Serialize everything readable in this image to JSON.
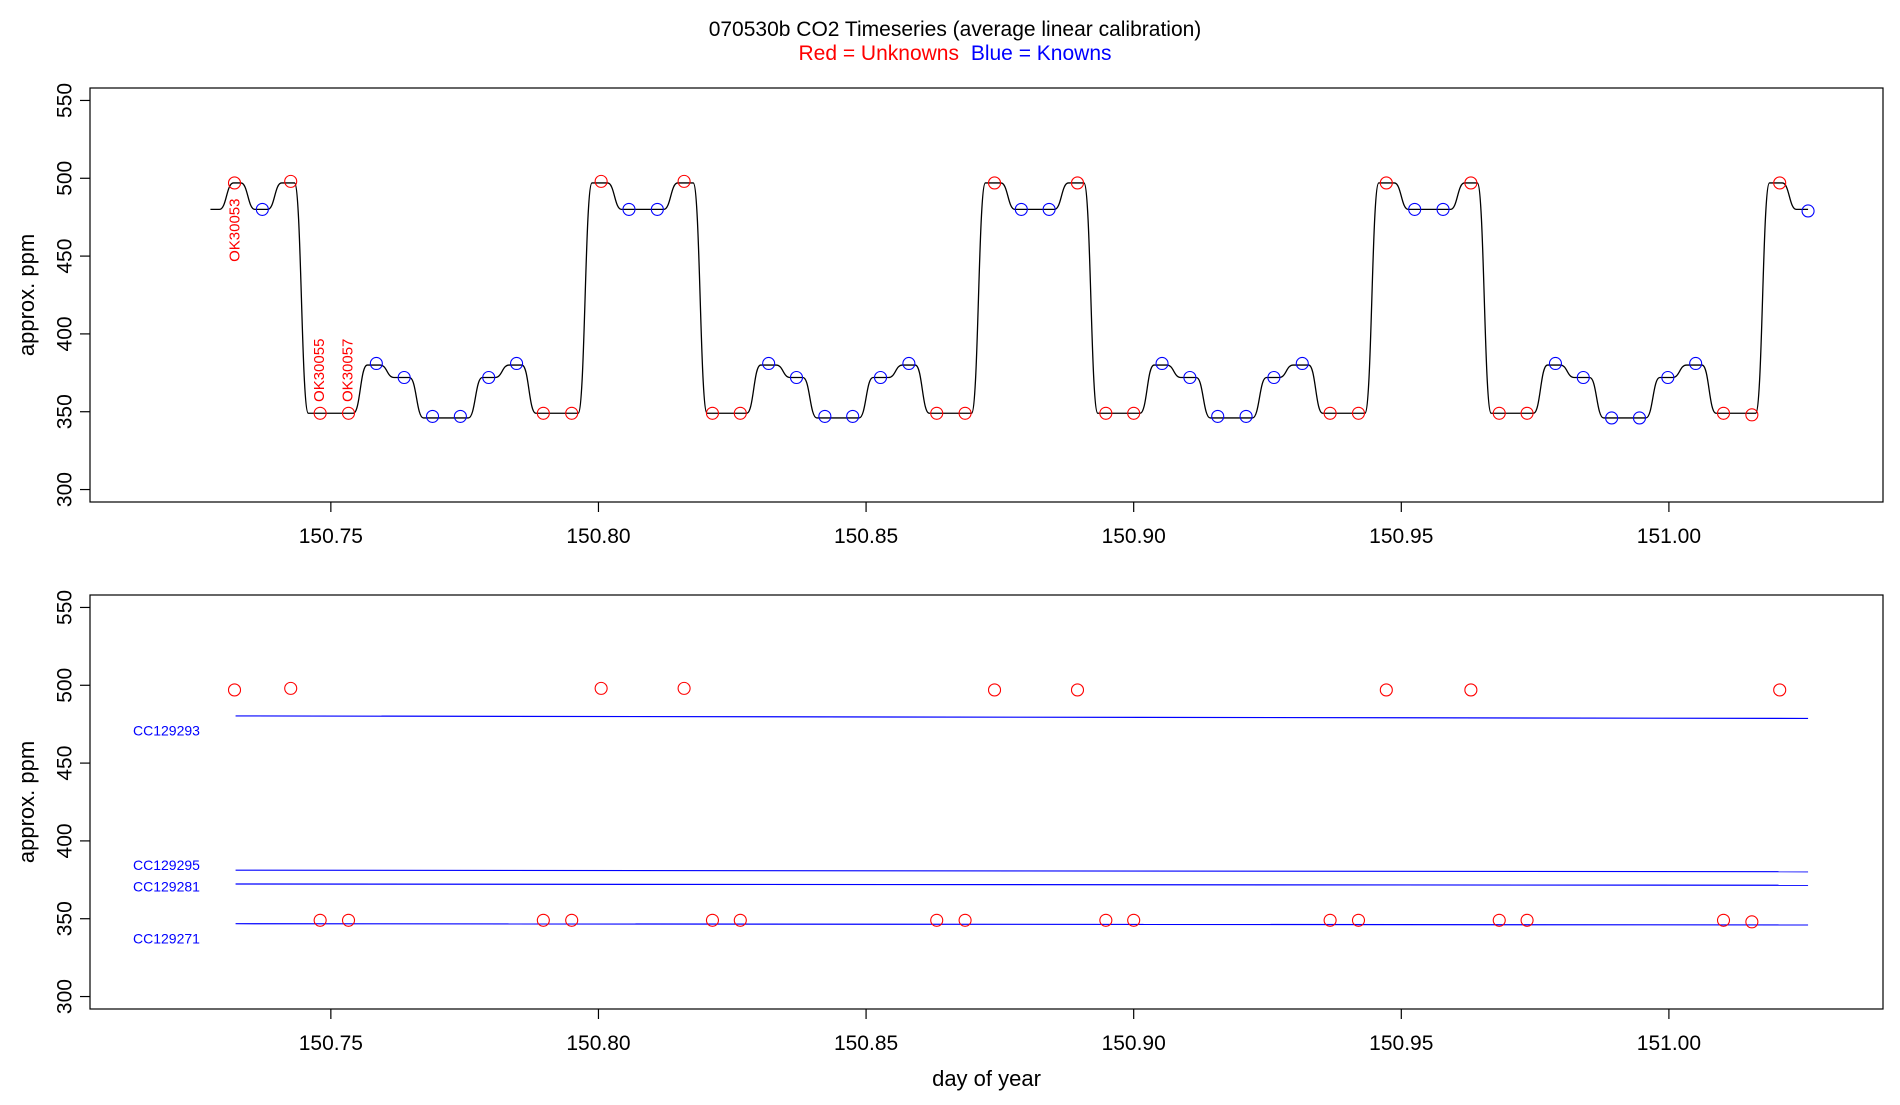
{
  "title": {
    "main": "070530b   CO2 Timeseries (average linear calibration)",
    "legend_red": "Red = Unknowns",
    "legend_blue": "Blue = Knowns"
  },
  "colors": {
    "unknown": "#ff0000",
    "known": "#0000ff",
    "trace": "#000000",
    "axis": "#000000"
  },
  "chart_data": [
    {
      "type": "line",
      "panel": "top",
      "ylabel": "approx. ppm",
      "xlabel": "",
      "xlim": [
        150.705,
        151.04
      ],
      "ylim": [
        292,
        558
      ],
      "x_ticks": [
        "150.75",
        "150.80",
        "150.85",
        "150.90",
        "150.95",
        "151.00"
      ],
      "y_ticks": [
        "300",
        "350",
        "400",
        "450",
        "500",
        "550"
      ],
      "trace_levels": [
        {
          "x0": 150.7275,
          "x1": 150.7305,
          "y": 480
        },
        {
          "x0": 150.7305,
          "x1": 150.7345,
          "y": 497
        },
        {
          "x0": 150.7345,
          "x1": 150.7395,
          "y": 480
        },
        {
          "x0": 150.7395,
          "x1": 150.7445,
          "y": 497
        },
        {
          "x0": 150.7445,
          "x1": 150.7555,
          "y": 349
        },
        {
          "x0": 150.7555,
          "x1": 150.7605,
          "y": 380
        },
        {
          "x0": 150.7605,
          "x1": 150.766,
          "y": 372
        },
        {
          "x0": 150.766,
          "x1": 150.777,
          "y": 346
        },
        {
          "x0": 150.777,
          "x1": 150.782,
          "y": 372
        },
        {
          "x0": 150.782,
          "x1": 150.787,
          "y": 380
        },
        {
          "x0": 150.787,
          "x1": 150.7975,
          "y": 349
        },
        {
          "x0": 150.7975,
          "x1": 150.803,
          "y": 497
        },
        {
          "x0": 150.803,
          "x1": 150.8135,
          "y": 480
        },
        {
          "x0": 150.8135,
          "x1": 150.819,
          "y": 497
        },
        {
          "x0": 150.819,
          "x1": 150.829,
          "y": 349
        },
        {
          "x0": 150.829,
          "x1": 150.8345,
          "y": 380
        },
        {
          "x0": 150.8345,
          "x1": 150.8395,
          "y": 372
        },
        {
          "x0": 150.8395,
          "x1": 150.85,
          "y": 346
        },
        {
          "x0": 150.85,
          "x1": 150.8555,
          "y": 372
        },
        {
          "x0": 150.8555,
          "x1": 150.8605,
          "y": 380
        },
        {
          "x0": 150.8605,
          "x1": 150.871,
          "y": 349
        },
        {
          "x0": 150.871,
          "x1": 150.8765,
          "y": 497
        },
        {
          "x0": 150.8765,
          "x1": 150.8865,
          "y": 480
        },
        {
          "x0": 150.8865,
          "x1": 150.892,
          "y": 497
        },
        {
          "x0": 150.892,
          "x1": 150.9025,
          "y": 349
        },
        {
          "x0": 150.9025,
          "x1": 150.9075,
          "y": 380
        },
        {
          "x0": 150.9075,
          "x1": 150.913,
          "y": 372
        },
        {
          "x0": 150.913,
          "x1": 150.9235,
          "y": 346
        },
        {
          "x0": 150.9235,
          "x1": 150.9285,
          "y": 372
        },
        {
          "x0": 150.9285,
          "x1": 150.934,
          "y": 380
        },
        {
          "x0": 150.934,
          "x1": 150.9445,
          "y": 349
        },
        {
          "x0": 150.9445,
          "x1": 150.95,
          "y": 497
        },
        {
          "x0": 150.95,
          "x1": 150.9605,
          "y": 480
        },
        {
          "x0": 150.9605,
          "x1": 150.9655,
          "y": 497
        },
        {
          "x0": 150.9655,
          "x1": 150.976,
          "y": 349
        },
        {
          "x0": 150.976,
          "x1": 150.981,
          "y": 380
        },
        {
          "x0": 150.981,
          "x1": 150.9865,
          "y": 372
        },
        {
          "x0": 150.9865,
          "x1": 150.997,
          "y": 346
        },
        {
          "x0": 150.997,
          "x1": 151.002,
          "y": 372
        },
        {
          "x0": 151.002,
          "x1": 151.0075,
          "y": 380
        },
        {
          "x0": 151.0075,
          "x1": 151.0175,
          "y": 349
        },
        {
          "x0": 151.0175,
          "x1": 151.0225,
          "y": 497
        },
        {
          "x0": 151.0225,
          "x1": 151.026,
          "y": 480
        }
      ],
      "series": [
        {
          "role": "unknown",
          "points": [
            [
              150.732,
              497
            ],
            [
              150.7425,
              498
            ],
            [
              150.748,
              349
            ],
            [
              150.7533,
              349
            ],
            [
              150.7897,
              349
            ],
            [
              150.795,
              349
            ],
            [
              150.8005,
              498
            ],
            [
              150.816,
              498
            ],
            [
              150.8213,
              349
            ],
            [
              150.8265,
              349
            ],
            [
              150.8632,
              349
            ],
            [
              150.8685,
              349
            ],
            [
              150.874,
              497
            ],
            [
              150.8895,
              497
            ],
            [
              150.8948,
              349
            ],
            [
              150.9,
              349
            ],
            [
              150.9367,
              349
            ],
            [
              150.942,
              349
            ],
            [
              150.9472,
              497
            ],
            [
              150.963,
              497
            ],
            [
              150.9683,
              349
            ],
            [
              150.9735,
              349
            ],
            [
              151.0102,
              349
            ],
            [
              151.0155,
              348
            ],
            [
              151.0207,
              497
            ]
          ]
        },
        {
          "role": "known",
          "points": [
            [
              150.7372,
              480
            ],
            [
              150.7585,
              381
            ],
            [
              150.7637,
              372
            ],
            [
              150.769,
              347
            ],
            [
              150.7742,
              347
            ],
            [
              150.7795,
              372
            ],
            [
              150.7847,
              381
            ],
            [
              150.8057,
              480
            ],
            [
              150.811,
              480
            ],
            [
              150.8318,
              381
            ],
            [
              150.837,
              372
            ],
            [
              150.8423,
              347
            ],
            [
              150.8475,
              347
            ],
            [
              150.8527,
              372
            ],
            [
              150.858,
              381
            ],
            [
              150.879,
              480
            ],
            [
              150.8842,
              480
            ],
            [
              150.9053,
              381
            ],
            [
              150.9105,
              372
            ],
            [
              150.9157,
              347
            ],
            [
              150.921,
              347
            ],
            [
              150.9262,
              372
            ],
            [
              150.9315,
              381
            ],
            [
              150.9525,
              480
            ],
            [
              150.9578,
              480
            ],
            [
              150.9788,
              381
            ],
            [
              150.984,
              372
            ],
            [
              150.9893,
              346
            ],
            [
              150.9945,
              346
            ],
            [
              150.9998,
              372
            ],
            [
              151.005,
              381
            ],
            [
              151.026,
              479
            ]
          ]
        }
      ],
      "annotations": [
        {
          "text": "OK30053",
          "x": 150.7322,
          "y": 487,
          "color": "unknown"
        },
        {
          "text": "OK30055",
          "x": 150.748,
          "y": 397,
          "color": "unknown"
        },
        {
          "text": "OK30057",
          "x": 150.7533,
          "y": 397,
          "color": "unknown"
        }
      ]
    },
    {
      "type": "scatter",
      "panel": "bottom",
      "ylabel": "approx. ppm",
      "xlabel": "day of year",
      "xlim": [
        150.705,
        151.04
      ],
      "ylim": [
        292,
        558
      ],
      "x_ticks": [
        "150.75",
        "150.80",
        "150.85",
        "150.90",
        "150.95",
        "151.00"
      ],
      "y_ticks": [
        "300",
        "350",
        "400",
        "450",
        "500",
        "550"
      ],
      "series": [
        {
          "role": "unknown",
          "points": [
            [
              150.732,
              497
            ],
            [
              150.7425,
              498
            ],
            [
              150.748,
              349
            ],
            [
              150.7533,
              349
            ],
            [
              150.7897,
              349
            ],
            [
              150.795,
              349
            ],
            [
              150.8005,
              498
            ],
            [
              150.816,
              498
            ],
            [
              150.8213,
              349
            ],
            [
              150.8265,
              349
            ],
            [
              150.8632,
              349
            ],
            [
              150.8685,
              349
            ],
            [
              150.874,
              497
            ],
            [
              150.8895,
              497
            ],
            [
              150.8948,
              349
            ],
            [
              150.9,
              349
            ],
            [
              150.9367,
              349
            ],
            [
              150.942,
              349
            ],
            [
              150.9472,
              497
            ],
            [
              150.963,
              497
            ],
            [
              150.9683,
              349
            ],
            [
              150.9735,
              349
            ],
            [
              151.0102,
              349
            ],
            [
              151.0155,
              348
            ],
            [
              151.0207,
              497
            ]
          ]
        }
      ],
      "standards": [
        {
          "name": "CC129293",
          "x0": 150.7322,
          "y0": 480.3,
          "x1": 151.026,
          "y1": 478.7
        },
        {
          "name": "CC129295",
          "x0": 150.7322,
          "y0": 381.2,
          "x1": 151.026,
          "y1": 380.2
        },
        {
          "name": "CC129281",
          "x0": 150.7322,
          "y0": 372.3,
          "x1": 151.026,
          "y1": 371.5
        },
        {
          "name": "CC129271",
          "x0": 150.7322,
          "y0": 346.8,
          "x1": 151.026,
          "y1": 346.0
        }
      ]
    }
  ]
}
